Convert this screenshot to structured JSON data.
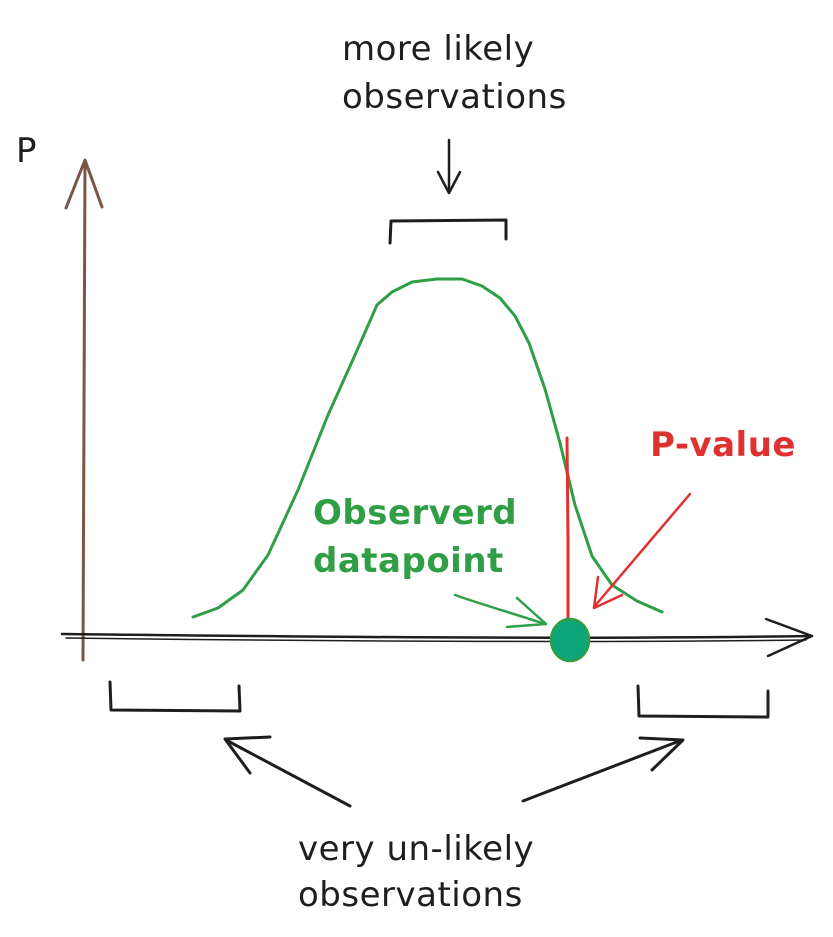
{
  "labels": {
    "y_axis": "P",
    "top_line1": "more likely",
    "top_line2": "observations",
    "pvalue": "P-value",
    "observed_line1": "Observerd",
    "observed_line2": "datapoint",
    "bottom_line1": "very un-likely",
    "bottom_line2": "observations"
  },
  "colors": {
    "ink": "#1e1e1e",
    "y_axis": "#7a5548",
    "curve": "#2f9e44",
    "pvalue": "#e03131",
    "datapoint_fill": "#0ca678",
    "text_green": "#2f9e44",
    "text_red": "#e03131"
  }
}
